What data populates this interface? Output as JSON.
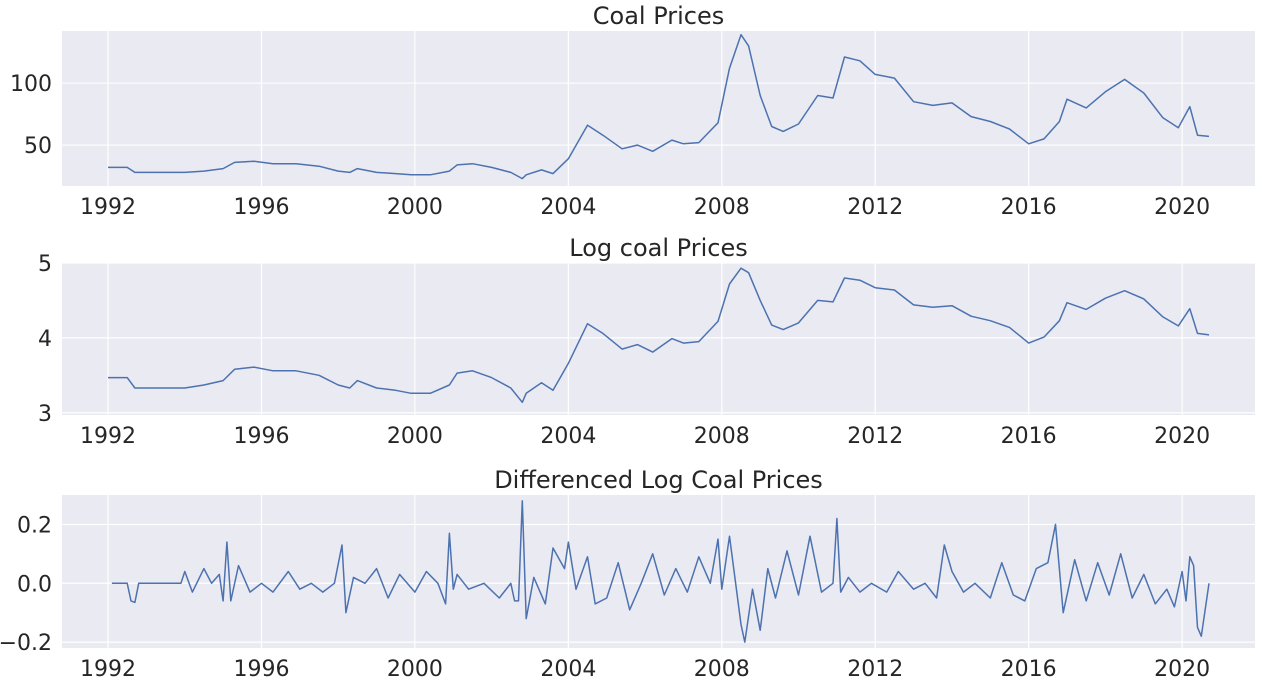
{
  "chart_data": [
    {
      "type": "line",
      "title": "Coal Prices",
      "xlabel": "",
      "ylabel": "",
      "xlim": [
        1990.8,
        2021.9
      ],
      "ylim": [
        17,
        142
      ],
      "xticks": [
        1992,
        1996,
        2000,
        2004,
        2008,
        2012,
        2016,
        2020
      ],
      "xtick_labels": [
        "1992",
        "1996",
        "2000",
        "2004",
        "2008",
        "2012",
        "2016",
        "2020"
      ],
      "yticks": [
        50,
        100
      ],
      "ytick_labels": [
        "50",
        "100"
      ],
      "grid": true,
      "color": "#4c72b0",
      "series": [
        {
          "x": [
            1992.0,
            1992.5,
            1992.7,
            1993.0,
            1993.5,
            1993.9,
            1994.0,
            1994.5,
            1995.0,
            1995.3,
            1995.8,
            1996.3,
            1996.9,
            1997.5,
            1998.0,
            1998.3,
            1998.5,
            1999.0,
            1999.5,
            1999.9,
            2000.4,
            2000.9,
            2001.1,
            2001.5,
            2002.0,
            2002.5,
            2002.8,
            2002.9,
            2003.3,
            2003.6,
            2004.0,
            2004.5,
            2004.9,
            2005.4,
            2005.8,
            2006.2,
            2006.7,
            2007.0,
            2007.4,
            2007.9,
            2008.2,
            2008.5,
            2008.7,
            2009.0,
            2009.3,
            2009.6,
            2010.0,
            2010.5,
            2010.9,
            2011.2,
            2011.6,
            2012.0,
            2012.5,
            2013.0,
            2013.5,
            2014.0,
            2014.5,
            2015.0,
            2015.5,
            2016.0,
            2016.4,
            2016.8,
            2017.0,
            2017.5,
            2018.0,
            2018.5,
            2019.0,
            2019.5,
            2019.9,
            2020.2,
            2020.4,
            2020.7
          ],
          "y": [
            32,
            32,
            28,
            28,
            28,
            28,
            28,
            29,
            31,
            36,
            37,
            35,
            35,
            33,
            29,
            28,
            31,
            28,
            27,
            26,
            26,
            29,
            34,
            35,
            32,
            28,
            23,
            26,
            30,
            27,
            39,
            66,
            58,
            47,
            50,
            45,
            54,
            51,
            52,
            68,
            112,
            139,
            130,
            90,
            65,
            61,
            67,
            90,
            88,
            121,
            118,
            107,
            104,
            85,
            82,
            84,
            73,
            69,
            63,
            51,
            55,
            69,
            87,
            80,
            93,
            103,
            92,
            72,
            64,
            81,
            58,
            57
          ]
        }
      ]
    },
    {
      "type": "line",
      "title": "Log coal Prices",
      "xlabel": "",
      "ylabel": "",
      "xlim": [
        1990.8,
        2021.9
      ],
      "ylim": [
        2.97,
        5.0
      ],
      "xticks": [
        1992,
        1996,
        2000,
        2004,
        2008,
        2012,
        2016,
        2020
      ],
      "xtick_labels": [
        "1992",
        "1996",
        "2000",
        "2004",
        "2008",
        "2012",
        "2016",
        "2020"
      ],
      "yticks": [
        3,
        4,
        5
      ],
      "ytick_labels": [
        "3",
        "4",
        "5"
      ],
      "grid": true,
      "color": "#4c72b0",
      "series": [
        {
          "x": [
            1992.0,
            1992.5,
            1992.7,
            1993.0,
            1993.5,
            1993.9,
            1994.0,
            1994.5,
            1995.0,
            1995.3,
            1995.8,
            1996.3,
            1996.9,
            1997.5,
            1998.0,
            1998.3,
            1998.5,
            1999.0,
            1999.5,
            1999.9,
            2000.4,
            2000.9,
            2001.1,
            2001.5,
            2002.0,
            2002.5,
            2002.8,
            2002.9,
            2003.3,
            2003.6,
            2004.0,
            2004.5,
            2004.9,
            2005.4,
            2005.8,
            2006.2,
            2006.7,
            2007.0,
            2007.4,
            2007.9,
            2008.2,
            2008.5,
            2008.7,
            2009.0,
            2009.3,
            2009.6,
            2010.0,
            2010.5,
            2010.9,
            2011.2,
            2011.6,
            2012.0,
            2012.5,
            2013.0,
            2013.5,
            2014.0,
            2014.5,
            2015.0,
            2015.5,
            2016.0,
            2016.4,
            2016.8,
            2017.0,
            2017.5,
            2018.0,
            2018.5,
            2019.0,
            2019.5,
            2019.9,
            2020.2,
            2020.4,
            2020.7
          ],
          "y": [
            3.47,
            3.47,
            3.33,
            3.33,
            3.33,
            3.33,
            3.33,
            3.37,
            3.43,
            3.58,
            3.61,
            3.56,
            3.56,
            3.5,
            3.37,
            3.33,
            3.43,
            3.33,
            3.3,
            3.26,
            3.26,
            3.37,
            3.53,
            3.56,
            3.47,
            3.33,
            3.14,
            3.26,
            3.4,
            3.3,
            3.66,
            4.19,
            4.06,
            3.85,
            3.91,
            3.81,
            3.99,
            3.93,
            3.95,
            4.22,
            4.72,
            4.93,
            4.87,
            4.5,
            4.17,
            4.11,
            4.2,
            4.5,
            4.48,
            4.8,
            4.77,
            4.67,
            4.64,
            4.44,
            4.41,
            4.43,
            4.29,
            4.23,
            4.14,
            3.93,
            4.01,
            4.23,
            4.47,
            4.38,
            4.53,
            4.63,
            4.52,
            4.28,
            4.16,
            4.39,
            4.06,
            4.04
          ]
        }
      ]
    },
    {
      "type": "line",
      "title": "Differenced Log Coal Prices",
      "xlabel": "",
      "ylabel": "",
      "xlim": [
        1990.8,
        2021.9
      ],
      "ylim": [
        -0.22,
        0.3
      ],
      "xticks": [
        1992,
        1996,
        2000,
        2004,
        2008,
        2012,
        2016,
        2020
      ],
      "xtick_labels": [
        "1992",
        "1996",
        "2000",
        "2004",
        "2008",
        "2012",
        "2016",
        "2020"
      ],
      "yticks": [
        -0.2,
        0.0,
        0.2
      ],
      "ytick_labels": [
        "−0.2",
        "0.0",
        "0.2"
      ],
      "grid": true,
      "color": "#4c72b0",
      "series": [
        {
          "x": [
            1992.1,
            1992.5,
            1992.6,
            1992.7,
            1992.8,
            1993.5,
            1993.9,
            1994.0,
            1994.2,
            1994.5,
            1994.7,
            1994.9,
            1995.0,
            1995.1,
            1995.2,
            1995.4,
            1995.7,
            1996.0,
            1996.3,
            1996.7,
            1997.0,
            1997.3,
            1997.6,
            1997.9,
            1998.1,
            1998.2,
            1998.4,
            1998.7,
            1999.0,
            1999.3,
            1999.6,
            2000.0,
            2000.3,
            2000.6,
            2000.8,
            2000.9,
            2001.0,
            2001.1,
            2001.4,
            2001.8,
            2002.2,
            2002.5,
            2002.6,
            2002.7,
            2002.8,
            2002.9,
            2003.1,
            2003.4,
            2003.6,
            2003.9,
            2004.0,
            2004.2,
            2004.5,
            2004.7,
            2005.0,
            2005.3,
            2005.6,
            2005.9,
            2006.2,
            2006.5,
            2006.8,
            2007.1,
            2007.4,
            2007.7,
            2007.9,
            2008.0,
            2008.2,
            2008.5,
            2008.6,
            2008.8,
            2009.0,
            2009.2,
            2009.4,
            2009.7,
            2010.0,
            2010.3,
            2010.6,
            2010.9,
            2011.0,
            2011.1,
            2011.3,
            2011.6,
            2011.9,
            2012.3,
            2012.6,
            2013.0,
            2013.3,
            2013.6,
            2013.8,
            2014.0,
            2014.3,
            2014.6,
            2015.0,
            2015.3,
            2015.6,
            2015.9,
            2016.2,
            2016.5,
            2016.7,
            2016.9,
            2017.2,
            2017.5,
            2017.8,
            2018.1,
            2018.4,
            2018.7,
            2019.0,
            2019.3,
            2019.6,
            2019.8,
            2020.0,
            2020.1,
            2020.2,
            2020.3,
            2020.4,
            2020.5,
            2020.7
          ],
          "y": [
            0.0,
            0.0,
            -0.06,
            -0.065,
            0.0,
            0.0,
            0.0,
            0.04,
            -0.03,
            0.05,
            0.0,
            0.03,
            -0.06,
            0.14,
            -0.06,
            0.06,
            -0.03,
            0.0,
            -0.03,
            0.04,
            -0.02,
            0.0,
            -0.03,
            0.0,
            0.13,
            -0.1,
            0.02,
            0.0,
            0.05,
            -0.05,
            0.03,
            -0.03,
            0.04,
            0.0,
            -0.07,
            0.17,
            -0.02,
            0.03,
            -0.02,
            0.0,
            -0.05,
            0.0,
            -0.06,
            -0.06,
            0.28,
            -0.12,
            0.02,
            -0.07,
            0.12,
            0.05,
            0.14,
            -0.02,
            0.09,
            -0.07,
            -0.05,
            0.07,
            -0.09,
            0.0,
            0.1,
            -0.04,
            0.05,
            -0.03,
            0.09,
            0.0,
            0.15,
            -0.02,
            0.16,
            -0.14,
            -0.2,
            -0.02,
            -0.16,
            0.05,
            -0.05,
            0.11,
            -0.04,
            0.16,
            -0.03,
            0.0,
            0.22,
            -0.03,
            0.02,
            -0.03,
            0.0,
            -0.03,
            0.04,
            -0.02,
            0.0,
            -0.05,
            0.13,
            0.04,
            -0.03,
            0.0,
            -0.05,
            0.07,
            -0.04,
            -0.06,
            0.05,
            0.07,
            0.2,
            -0.1,
            0.08,
            -0.06,
            0.07,
            -0.04,
            0.1,
            -0.05,
            0.03,
            -0.07,
            -0.02,
            -0.08,
            0.04,
            -0.06,
            0.09,
            0.06,
            -0.15,
            -0.18,
            0.0
          ]
        }
      ]
    }
  ]
}
